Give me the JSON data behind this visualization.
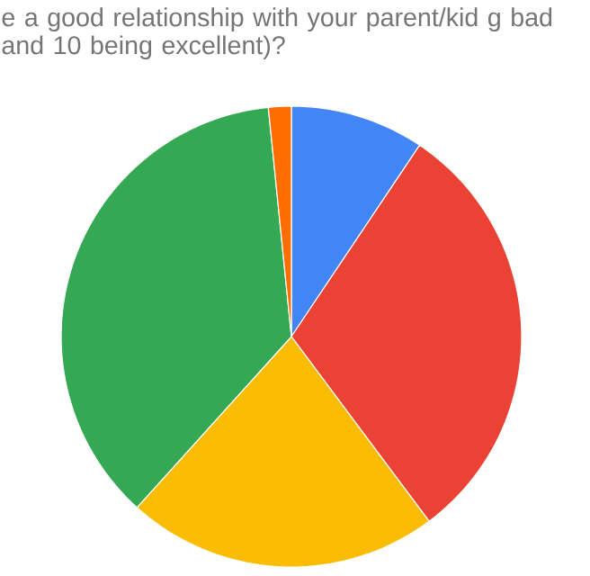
{
  "chart_data": {
    "type": "pie",
    "title": "e a good relationship with your parent/kid g bad and 10 being excellent)?",
    "categories": [
      null,
      null,
      null,
      null,
      null
    ],
    "values": [
      9.4,
      30.4,
      21.9,
      36.7,
      1.6
    ],
    "colors": [
      "#4285f4",
      "#ea4335",
      "#fbbc04",
      "#34a853",
      "#ff6d01"
    ]
  }
}
